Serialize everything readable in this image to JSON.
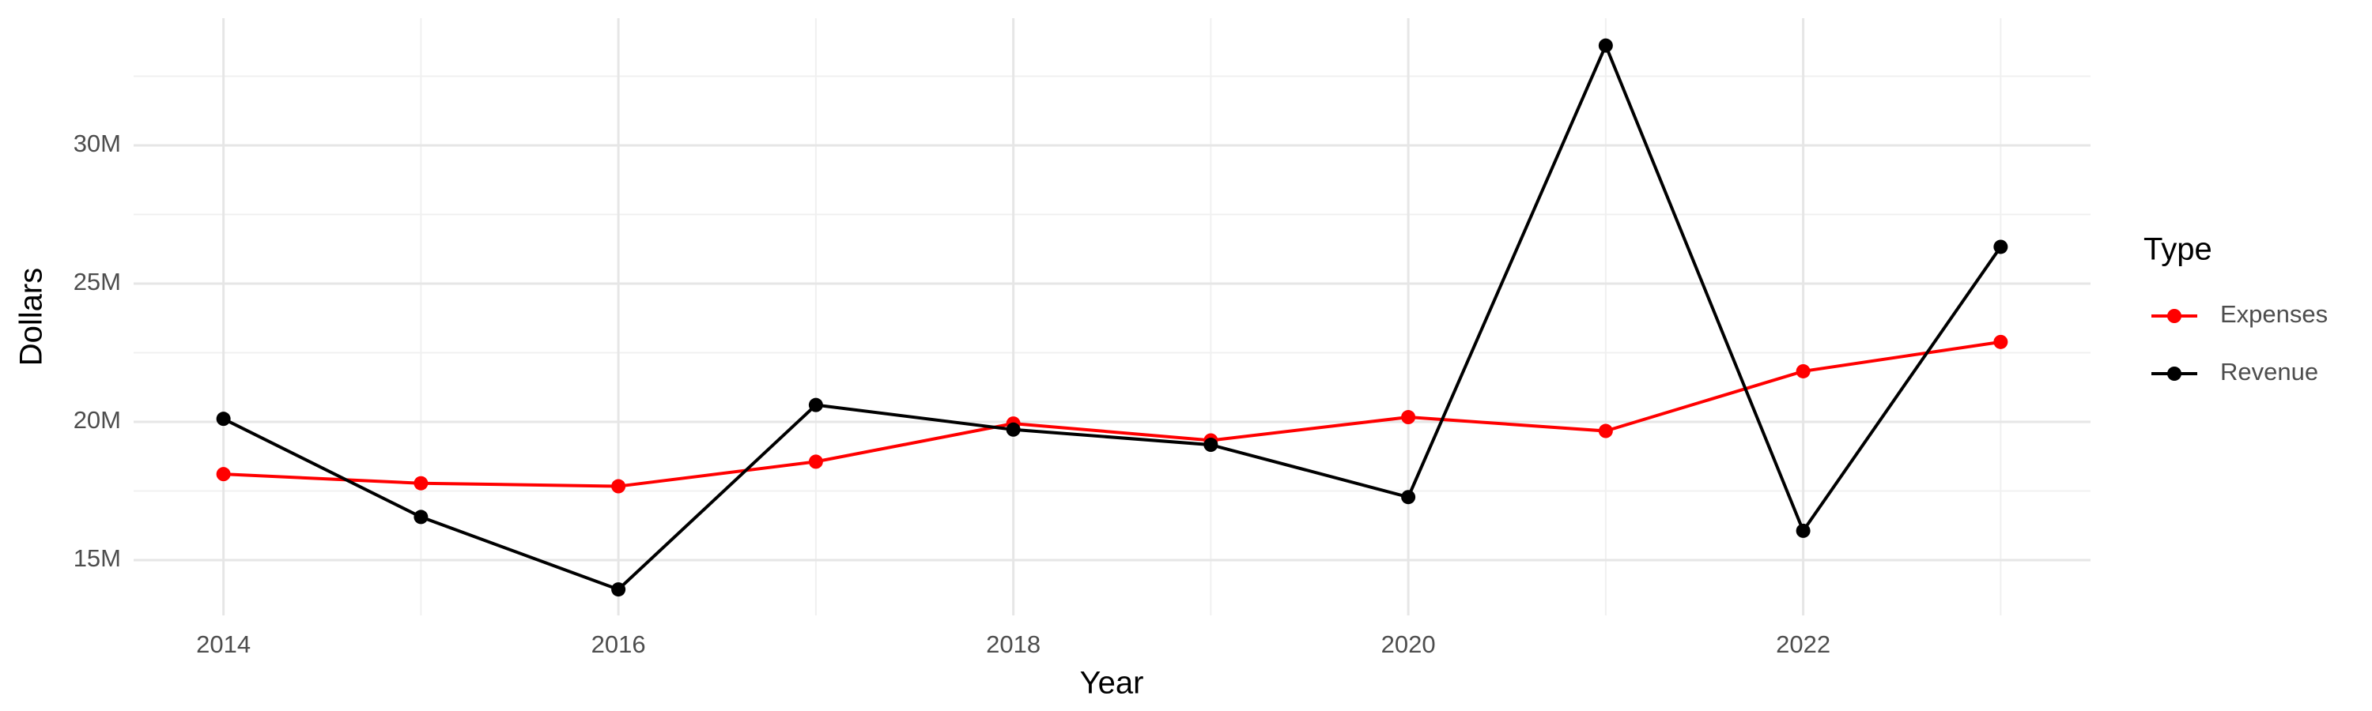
{
  "chart_data": {
    "type": "line",
    "x_label": "Year",
    "y_label": "Dollars",
    "legend_title": "Type",
    "x": [
      2014,
      2015,
      2016,
      2017,
      2018,
      2019,
      2020,
      2021,
      2022,
      2023
    ],
    "series": [
      {
        "name": "Expenses",
        "color": "#ff0000",
        "values": [
          18110000,
          17780000,
          17670000,
          18560000,
          19940000,
          19330000,
          20170000,
          19670000,
          21830000,
          22890000
        ]
      },
      {
        "name": "Revenue",
        "color": "#000000",
        "values": [
          20110000,
          16560000,
          13940000,
          20610000,
          19720000,
          19170000,
          17280000,
          33610000,
          16060000,
          26330000
        ]
      }
    ],
    "xlim": [
      2013.545,
      2023.455
    ],
    "xticks": [
      2014,
      2016,
      2018,
      2020,
      2022
    ],
    "ylim": [
      13000000,
      34600000
    ],
    "yticks": [
      {
        "value": 15000000,
        "label": "15M"
      },
      {
        "value": 20000000,
        "label": "20M"
      },
      {
        "value": 25000000,
        "label": "25M"
      },
      {
        "value": 30000000,
        "label": "30M"
      }
    ],
    "grid": true,
    "legend_position": "right"
  }
}
